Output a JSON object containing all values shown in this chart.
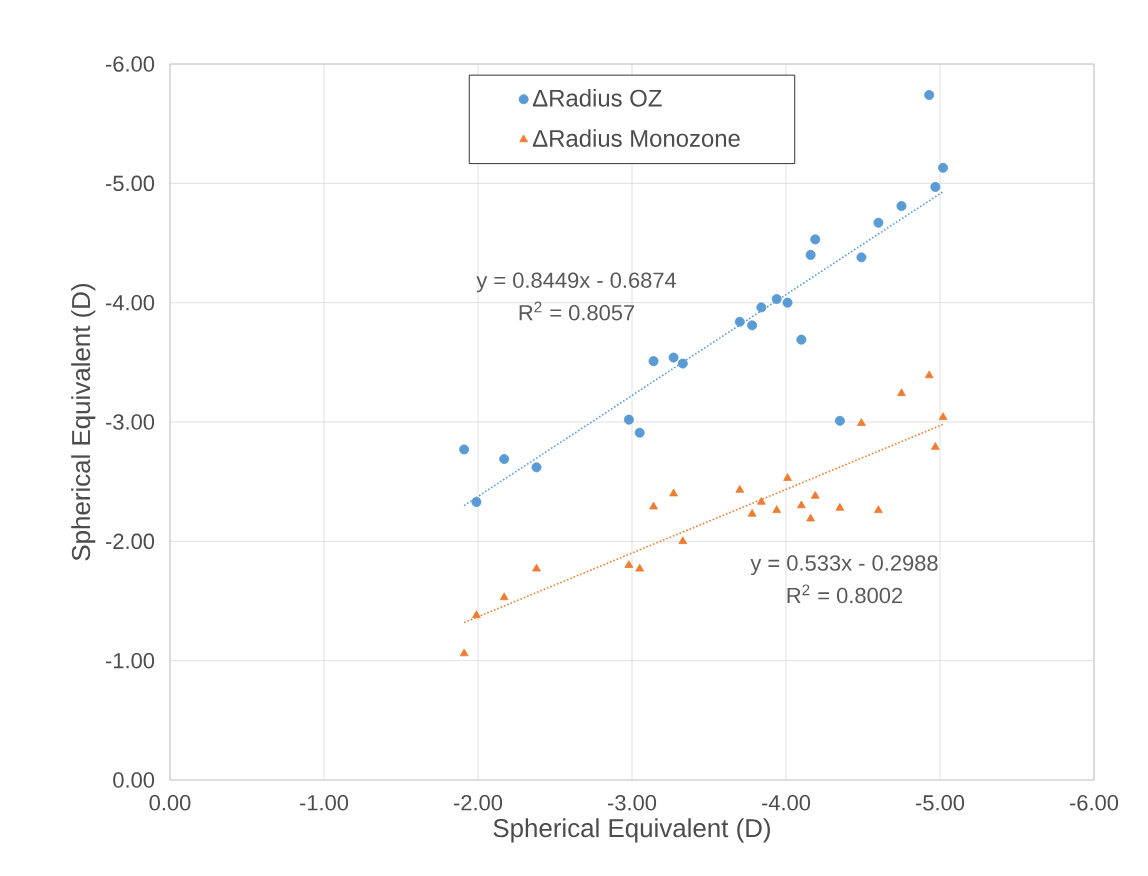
{
  "chart_data": {
    "type": "scatter",
    "xlabel": "Spherical Equivalent (D)",
    "ylabel": "Spherical Equivalent (D)",
    "xlim": [
      0,
      -6
    ],
    "ylim": [
      0,
      -6
    ],
    "xticks": [
      {
        "value": 0,
        "label": "0.00"
      },
      {
        "value": -1,
        "label": "-1.00"
      },
      {
        "value": -2,
        "label": "-2.00"
      },
      {
        "value": -3,
        "label": "-3.00"
      },
      {
        "value": -4,
        "label": "-4.00"
      },
      {
        "value": -5,
        "label": "-5.00"
      },
      {
        "value": -6,
        "label": "-6.00"
      }
    ],
    "yticks": [
      {
        "value": 0,
        "label": "0.00"
      },
      {
        "value": -1,
        "label": "-1.00"
      },
      {
        "value": -2,
        "label": "-2.00"
      },
      {
        "value": -3,
        "label": "-3.00"
      },
      {
        "value": -4,
        "label": "-4.00"
      },
      {
        "value": -5,
        "label": "-5.00"
      },
      {
        "value": -6,
        "label": "-6.00"
      }
    ],
    "grid": true,
    "legend": "top",
    "series": [
      {
        "name": "ΔRadius OZ",
        "marker": "circle",
        "color": "#5b9bd5",
        "x": [
          -1.91,
          -1.99,
          -2.17,
          -2.38,
          -2.98,
          -3.05,
          -3.14,
          -3.27,
          -3.33,
          -3.7,
          -3.78,
          -3.84,
          -3.94,
          -4.01,
          -4.1,
          -4.16,
          -4.19,
          -4.35,
          -4.49,
          -4.6,
          -4.75,
          -4.93,
          -4.97,
          -5.02
        ],
        "values": [
          -2.77,
          -2.33,
          -2.69,
          -2.62,
          -3.02,
          -2.91,
          -3.51,
          -3.54,
          -3.49,
          -3.84,
          -3.81,
          -3.96,
          -4.03,
          -4.0,
          -3.69,
          -4.4,
          -4.53,
          -3.01,
          -4.38,
          -4.67,
          -4.81,
          -5.74,
          -4.97,
          -5.13
        ]
      },
      {
        "name": "ΔRadius Monozone",
        "marker": "triangle",
        "color": "#ed7d31",
        "x": [
          -1.91,
          -1.99,
          -2.17,
          -2.38,
          -2.98,
          -3.05,
          -3.14,
          -3.27,
          -3.33,
          -3.7,
          -3.78,
          -3.84,
          -3.94,
          -4.01,
          -4.1,
          -4.16,
          -4.19,
          -4.35,
          -4.49,
          -4.6,
          -4.75,
          -4.93,
          -4.97,
          -5.02
        ],
        "values": [
          -1.06,
          -1.38,
          -1.53,
          -1.77,
          -1.8,
          -1.77,
          -2.29,
          -2.4,
          -2.0,
          -2.43,
          -2.23,
          -2.33,
          -2.26,
          -2.53,
          -2.3,
          -2.19,
          -2.38,
          -2.28,
          -2.99,
          -2.26,
          -3.24,
          -3.39,
          -2.79,
          -3.04
        ]
      },
      {
        "type": "line",
        "line_style": "dotted",
        "color": "#5b9bd5",
        "x": [
          -1.91,
          -5.02
        ],
        "values": [
          -2.3,
          -4.93
        ]
      },
      {
        "type": "line",
        "line_style": "dotted",
        "color": "#ed7d31",
        "x": [
          -1.91,
          -5.02
        ],
        "values": [
          -1.32,
          -2.98
        ]
      }
    ],
    "annotations": [
      "y = 0.8449x - 0.6874",
      "R$^{2}$ = 0.8057",
      "y = 0.533x - 0.2988",
      "R$^{2}$ = 0.8002"
    ]
  }
}
